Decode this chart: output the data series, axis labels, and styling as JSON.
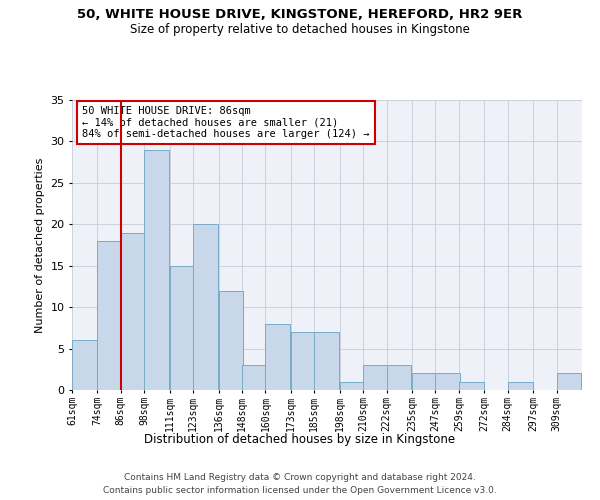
{
  "title": "50, WHITE HOUSE DRIVE, KINGSTONE, HEREFORD, HR2 9ER",
  "subtitle": "Size of property relative to detached houses in Kingstone",
  "xlabel": "Distribution of detached houses by size in Kingstone",
  "ylabel": "Number of detached properties",
  "bins": [
    61,
    74,
    86,
    98,
    111,
    123,
    136,
    148,
    160,
    173,
    185,
    198,
    210,
    222,
    235,
    247,
    259,
    272,
    284,
    297,
    309
  ],
  "heights": [
    6,
    18,
    19,
    29,
    15,
    20,
    12,
    3,
    8,
    7,
    7,
    1,
    3,
    3,
    2,
    2,
    1,
    0,
    1,
    0,
    2
  ],
  "bar_color": "#c8d8ea",
  "bar_edge_color": "#7aaac8",
  "red_line_x": 86,
  "annotation_line1": "50 WHITE HOUSE DRIVE: 86sqm",
  "annotation_line2": "← 14% of detached houses are smaller (21)",
  "annotation_line3": "84% of semi-detached houses are larger (124) →",
  "annotation_box_color": "#ffffff",
  "annotation_box_edge_color": "#cc0000",
  "red_line_color": "#cc0000",
  "ylim": [
    0,
    35
  ],
  "yticks": [
    0,
    5,
    10,
    15,
    20,
    25,
    30,
    35
  ],
  "footer1": "Contains HM Land Registry data © Crown copyright and database right 2024.",
  "footer2": "Contains public sector information licensed under the Open Government Licence v3.0.",
  "plot_bg_color": "#eef2f8",
  "fig_bg_color": "#ffffff"
}
